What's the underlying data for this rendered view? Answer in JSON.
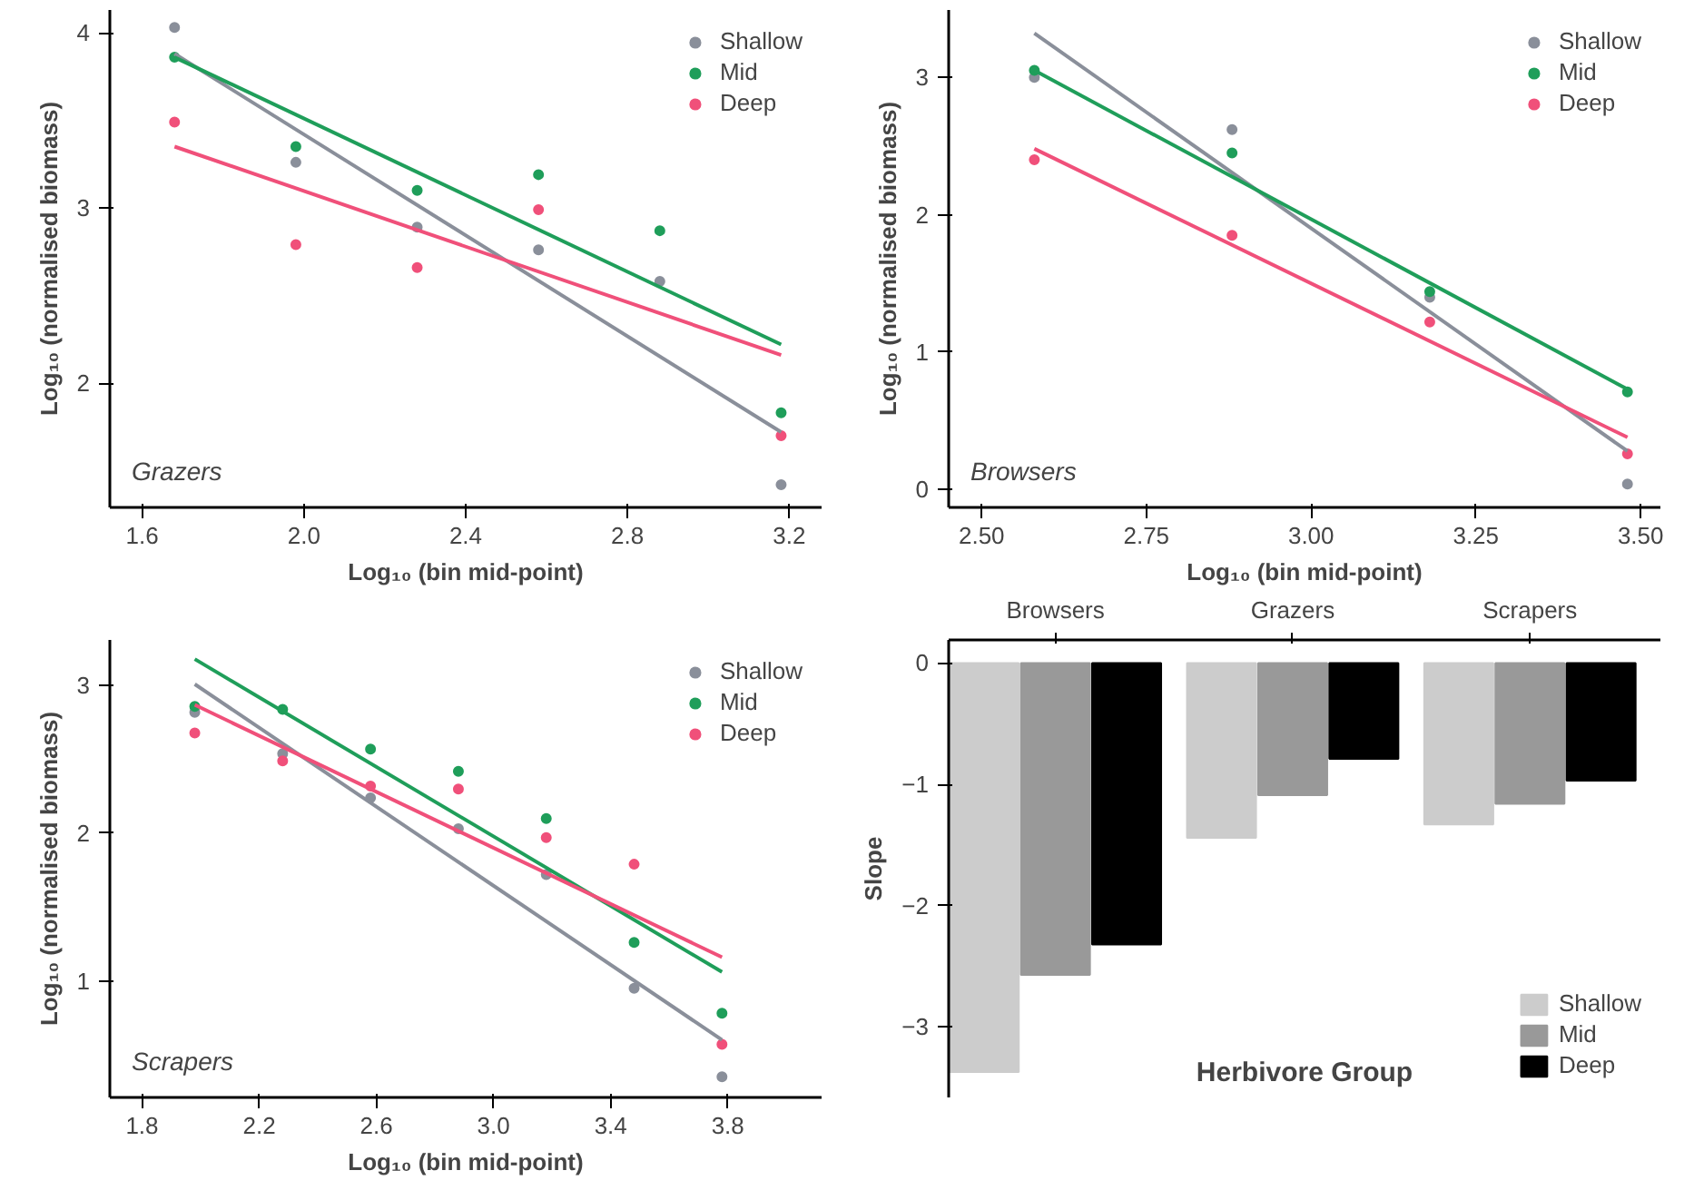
{
  "chart_data": [
    {
      "type": "scatter",
      "xlabel": "Log₁₀ (bin mid-point)",
      "ylabel": "Log₁₀ (normalised biomass)",
      "annotations": [
        "Grazers"
      ],
      "x": [
        1.68,
        1.98,
        2.28,
        2.58,
        2.88,
        3.18
      ],
      "xlim": [
        1.52,
        3.28
      ],
      "xticks": [
        1.6,
        {
          "value": 2.0,
          "label": "2.0"
        },
        2.4,
        2.8,
        3.2
      ],
      "ylim": [
        1.29,
        4.13
      ],
      "yticks": [
        2,
        3,
        4
      ],
      "legend": "top right",
      "grid": false,
      "series": [
        {
          "name": "Shallow",
          "color": "#8a8f9a",
          "marker": "circle",
          "values": [
            4.03,
            3.26,
            2.89,
            2.76,
            2.58,
            1.42
          ]
        },
        {
          "name": "Mid",
          "color": "#1f9e5a",
          "marker": "circle",
          "values": [
            3.86,
            3.35,
            3.1,
            3.19,
            2.87,
            1.83
          ]
        },
        {
          "name": "Deep",
          "color": "#f0507a",
          "marker": "circle",
          "values": [
            3.49,
            2.79,
            2.66,
            2.99,
            null,
            1.7
          ]
        },
        {
          "type": "line",
          "color": "#8a8f9a",
          "x": [
            1.68,
            3.18
          ],
          "values": [
            3.88,
            1.72
          ]
        },
        {
          "type": "line",
          "color": "#1f9e5a",
          "x": [
            1.68,
            3.18
          ],
          "values": [
            3.86,
            2.22
          ]
        },
        {
          "type": "line",
          "color": "#f0507a",
          "x": [
            1.68,
            3.18
          ],
          "values": [
            3.35,
            2.16
          ]
        }
      ]
    },
    {
      "type": "scatter",
      "xlabel": "Log₁₀ (bin mid-point)",
      "ylabel": "Log₁₀ (normalised biomass)",
      "annotations": [
        "Browsers"
      ],
      "x": [
        2.58,
        2.88,
        3.18,
        3.48
      ],
      "xlim": [
        2.45,
        3.53
      ],
      "xticks": [
        {
          "value": 2.5,
          "label": "2.50"
        },
        {
          "value": 2.75,
          "label": "2.75"
        },
        {
          "value": 3.0,
          "label": "3.00"
        },
        {
          "value": 3.25,
          "label": "3.25"
        },
        {
          "value": 3.5,
          "label": "3.50"
        }
      ],
      "ylim": [
        -0.13,
        3.49
      ],
      "yticks": [
        0,
        1,
        2,
        3
      ],
      "legend": "top right",
      "grid": false,
      "series": [
        {
          "name": "Shallow",
          "color": "#8a8f9a",
          "marker": "circle",
          "values": [
            3.0,
            2.62,
            1.4,
            0.04
          ]
        },
        {
          "name": "Mid",
          "color": "#1f9e5a",
          "marker": "circle",
          "values": [
            3.05,
            2.45,
            1.44,
            0.71
          ]
        },
        {
          "name": "Deep",
          "color": "#f0507a",
          "marker": "circle",
          "values": [
            2.4,
            1.85,
            1.22,
            0.26
          ]
        },
        {
          "type": "line",
          "color": "#8a8f9a",
          "x": [
            2.58,
            3.48
          ],
          "values": [
            3.32,
            0.28
          ]
        },
        {
          "type": "line",
          "color": "#1f9e5a",
          "x": [
            2.58,
            3.48
          ],
          "values": [
            3.05,
            0.73
          ]
        },
        {
          "type": "line",
          "color": "#f0507a",
          "x": [
            2.58,
            3.48
          ],
          "values": [
            2.48,
            0.38
          ]
        }
      ]
    },
    {
      "type": "scatter",
      "xlabel": "Log₁₀ (bin mid-point)",
      "ylabel": "Log₁₀ (normalised biomass)",
      "annotations": [
        "Scrapers"
      ],
      "x": [
        1.98,
        2.28,
        2.58,
        2.88,
        3.18,
        3.48,
        3.78
      ],
      "xlim": [
        1.69,
        4.12
      ],
      "xticks": [
        1.8,
        2.2,
        2.6,
        {
          "value": 3.0,
          "label": "3.0"
        },
        3.4,
        3.8
      ],
      "ylim": [
        0.21,
        3.31
      ],
      "yticks": [
        1,
        2,
        3
      ],
      "legend": "top right",
      "grid": false,
      "series": [
        {
          "name": "Shallow",
          "color": "#8a8f9a",
          "marker": "circle",
          "values": [
            2.82,
            2.54,
            2.24,
            2.03,
            1.72,
            0.95,
            0.35
          ]
        },
        {
          "name": "Mid",
          "color": "#1f9e5a",
          "marker": "circle",
          "values": [
            2.86,
            2.84,
            2.57,
            2.42,
            2.1,
            1.26,
            0.78
          ]
        },
        {
          "name": "Deep",
          "color": "#f0507a",
          "marker": "circle",
          "values": [
            2.68,
            2.49,
            2.32,
            2.3,
            1.97,
            1.79,
            0.57
          ]
        },
        {
          "type": "line",
          "color": "#8a8f9a",
          "x": [
            1.98,
            3.78
          ],
          "values": [
            3.01,
            0.6
          ]
        },
        {
          "type": "line",
          "color": "#1f9e5a",
          "x": [
            1.98,
            3.78
          ],
          "values": [
            3.18,
            1.06
          ]
        },
        {
          "type": "line",
          "color": "#f0507a",
          "x": [
            1.98,
            3.78
          ],
          "values": [
            2.87,
            1.16
          ]
        }
      ]
    },
    {
      "type": "bar",
      "xlabel": "Herbivore Group",
      "ylabel": "Slope",
      "categories": [
        "Browsers",
        "Grazers",
        "Scrapers"
      ],
      "ylim": [
        -3.58,
        0.19
      ],
      "yticks": [
        -3,
        -2,
        -1,
        0
      ],
      "legend": "bottom right",
      "grid": false,
      "series": [
        {
          "name": "Shallow",
          "color": "#cccccc",
          "values": [
            -3.37,
            -1.44,
            -1.33
          ]
        },
        {
          "name": "Mid",
          "color": "#999999",
          "values": [
            -2.57,
            -1.09,
            -1.16
          ]
        },
        {
          "name": "Deep",
          "color": "#000000",
          "values": [
            -2.32,
            -0.79,
            -0.97
          ]
        }
      ]
    }
  ]
}
